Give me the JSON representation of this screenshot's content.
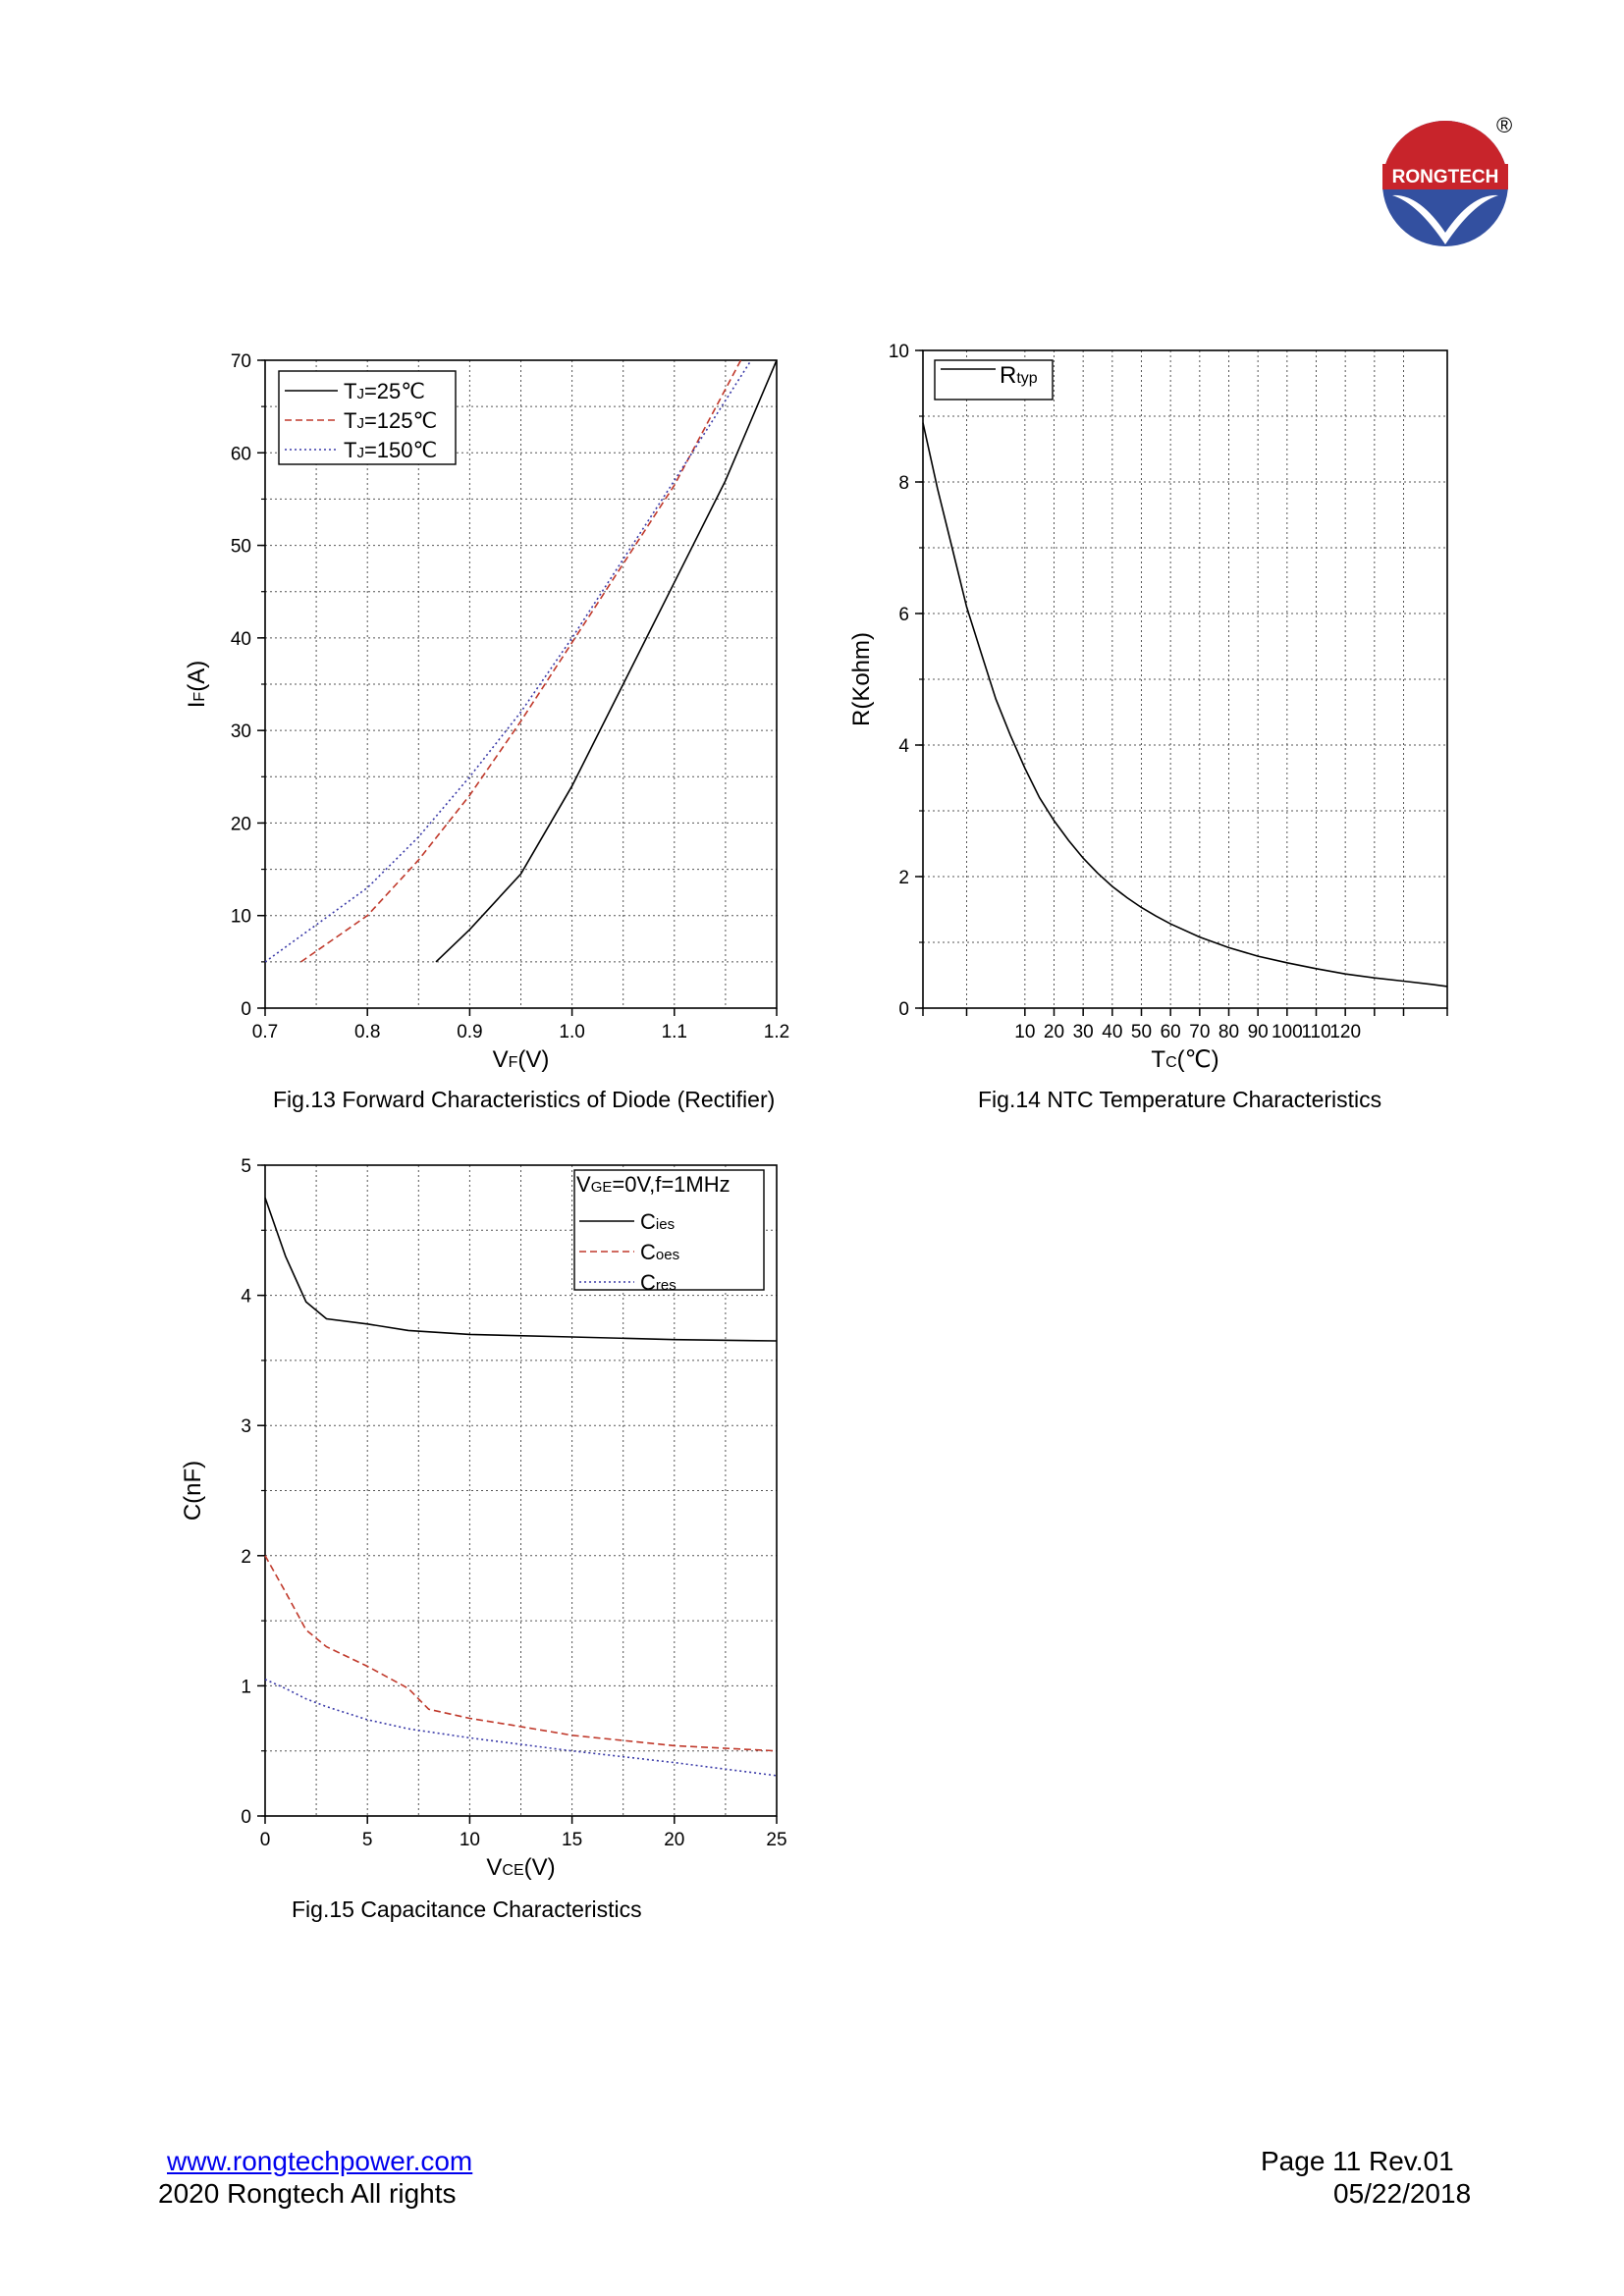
{
  "logo": {
    "text": "RONGTECH",
    "registered": "®"
  },
  "footer": {
    "website": "www.rongtechpower.com",
    "copyright": "2020 Rongtech All rights",
    "page": "Page 11 Rev.01",
    "date": "05/22/2018"
  },
  "colors": {
    "black": "#000000",
    "red": "#c0392b",
    "blue": "#3a3aa8",
    "logo_red": "#c8242b",
    "logo_blue": "#3350a0"
  },
  "chart_data": [
    {
      "id": "fig13",
      "type": "line",
      "caption": "Fig.13 Forward Characteristics of Diode (Rectifier)",
      "xlabel_main": "V",
      "xlabel_sub": "F",
      "xlabel_unit": "(V)",
      "ylabel_main": "I",
      "ylabel_sub": "F",
      "ylabel_unit": "(A)",
      "xlim": [
        0.7,
        1.2
      ],
      "ylim": [
        0,
        70
      ],
      "xticks": [
        0.7,
        0.8,
        0.9,
        1.0,
        1.1,
        1.2
      ],
      "xtick_labels": [
        "0.7",
        "0.8",
        "0.9",
        "1.0",
        "1.1",
        "1.2"
      ],
      "yticks": [
        0,
        10,
        20,
        30,
        40,
        50,
        60,
        70
      ],
      "ytick_labels": [
        "0",
        "10",
        "20",
        "30",
        "40",
        "50",
        "60",
        "70"
      ],
      "grid": true,
      "legend": "top-left",
      "series": [
        {
          "name": "TJ=25℃",
          "label_main": "T",
          "label_sub": "J",
          "label_rest": "=25℃",
          "style": "solid",
          "color": "#000000",
          "x": [
            0.867,
            0.9,
            0.95,
            1.0,
            1.05,
            1.1,
            1.15,
            1.2
          ],
          "y": [
            5,
            8.5,
            14.5,
            24,
            35,
            46,
            57,
            70
          ]
        },
        {
          "name": "TJ=125℃",
          "label_main": "T",
          "label_sub": "J",
          "label_rest": "=125℃",
          "style": "dashed",
          "color": "#c0392b",
          "x": [
            0.735,
            0.8,
            0.85,
            0.9,
            0.95,
            1.0,
            1.05,
            1.1,
            1.165
          ],
          "y": [
            5,
            10,
            16,
            23,
            31,
            39.5,
            48,
            56.5,
            70
          ]
        },
        {
          "name": "TJ=150℃",
          "label_main": "T",
          "label_sub": "J",
          "label_rest": "=150℃",
          "style": "dotted",
          "color": "#3a3aa8",
          "x": [
            0.7,
            0.8,
            0.85,
            0.9,
            0.95,
            1.0,
            1.05,
            1.1,
            1.175
          ],
          "y": [
            5,
            13,
            18.5,
            25,
            32,
            40,
            48.5,
            57,
            70
          ]
        }
      ]
    },
    {
      "id": "fig14",
      "type": "line",
      "caption": "Fig.14 NTC Temperature Characteristics",
      "xlabel_main": "T",
      "xlabel_sub": "C",
      "xlabel_unit": "(℃)",
      "ylabel": "R(Kohm)",
      "xlim": [
        -25,
        155
      ],
      "ylim": [
        0,
        10
      ],
      "xticks": [
        10,
        20,
        30,
        40,
        50,
        60,
        70,
        80,
        90,
        100,
        110,
        120
      ],
      "xtick_labels": [
        "10",
        "20",
        "30",
        "40",
        "50",
        "60",
        "70",
        "80",
        "90",
        "100",
        "110",
        "120"
      ],
      "xgrid": [
        -10,
        10,
        20,
        30,
        40,
        50,
        60,
        70,
        80,
        90,
        100,
        110,
        120,
        130,
        140
      ],
      "xminor": [
        -10,
        130,
        140
      ],
      "yticks": [
        0,
        2,
        4,
        6,
        8,
        10
      ],
      "ytick_labels": [
        "0",
        "2",
        "4",
        "6",
        "8",
        "10"
      ],
      "grid": true,
      "legend": "top-left",
      "series": [
        {
          "name": "Rtyp",
          "label_main": "R",
          "label_sub": "typ",
          "style": "solid",
          "color": "#000000",
          "x": [
            -25,
            -20,
            -15,
            -10,
            -5,
            0,
            5,
            10,
            15,
            20,
            25,
            30,
            35,
            40,
            45,
            50,
            55,
            60,
            70,
            80,
            90,
            100,
            110,
            120,
            130,
            140,
            150,
            155
          ],
          "y": [
            8.9,
            7.9,
            7.0,
            6.1,
            5.4,
            4.7,
            4.15,
            3.65,
            3.2,
            2.85,
            2.55,
            2.28,
            2.05,
            1.85,
            1.68,
            1.53,
            1.4,
            1.28,
            1.08,
            0.92,
            0.79,
            0.69,
            0.6,
            0.52,
            0.46,
            0.41,
            0.36,
            0.33
          ]
        }
      ]
    },
    {
      "id": "fig15",
      "type": "line",
      "caption": "Fig.15 Capacitance Characteristics",
      "xlabel_main": "V",
      "xlabel_sub": "CE",
      "xlabel_unit": "(V)",
      "ylabel": "C(nF)",
      "xlim": [
        0,
        25
      ],
      "ylim": [
        0,
        5
      ],
      "xticks": [
        0,
        5,
        10,
        15,
        20,
        25
      ],
      "xtick_labels": [
        "0",
        "5",
        "10",
        "15",
        "20",
        "25"
      ],
      "yticks": [
        0,
        1,
        2,
        3,
        4,
        5
      ],
      "ytick_labels": [
        "0",
        "1",
        "2",
        "3",
        "4",
        "5"
      ],
      "grid": true,
      "legend": "top-right",
      "legend_title_main": "V",
      "legend_title_sub": "GE",
      "legend_title_rest": "=0V,f=1MHz",
      "series": [
        {
          "name": "Cies",
          "label_main": "C",
          "label_sub": "ies",
          "style": "solid",
          "color": "#000000",
          "x": [
            0,
            1,
            2,
            3,
            5,
            7,
            10,
            15,
            20,
            25
          ],
          "y": [
            4.75,
            4.3,
            3.95,
            3.82,
            3.78,
            3.73,
            3.7,
            3.68,
            3.66,
            3.65
          ]
        },
        {
          "name": "Coes",
          "label_main": "C",
          "label_sub": "oes",
          "style": "dashed",
          "color": "#c0392b",
          "x": [
            0,
            1,
            2,
            3,
            5,
            7,
            8,
            10,
            12,
            15,
            20,
            25
          ],
          "y": [
            2.0,
            1.72,
            1.43,
            1.3,
            1.15,
            0.98,
            0.82,
            0.75,
            0.7,
            0.62,
            0.54,
            0.5
          ]
        },
        {
          "name": "Cres",
          "label_main": "C",
          "label_sub": "res",
          "style": "dotted",
          "color": "#3a3aa8",
          "x": [
            0,
            1,
            2,
            3,
            5,
            7,
            10,
            15,
            20,
            25
          ],
          "y": [
            1.05,
            0.98,
            0.9,
            0.84,
            0.74,
            0.67,
            0.6,
            0.5,
            0.41,
            0.31
          ]
        }
      ]
    }
  ]
}
